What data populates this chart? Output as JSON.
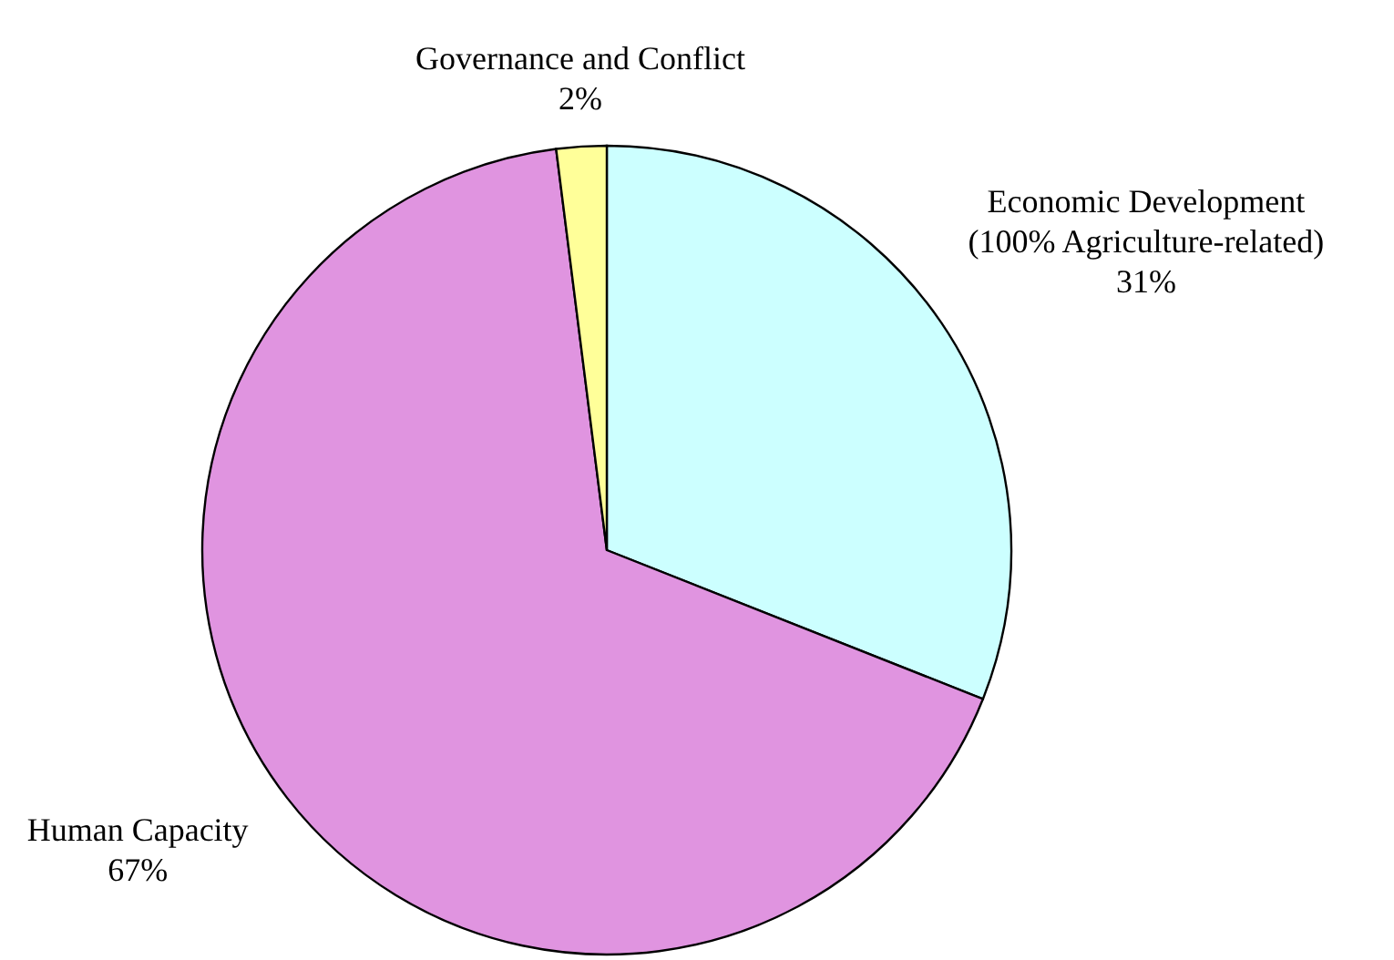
{
  "chart_data": {
    "type": "pie",
    "categories": [
      "Economic Development\n(100% Agriculture-related)",
      "Human Capacity",
      "Governance and Conflict"
    ],
    "values": [
      31,
      67,
      2
    ],
    "colors": [
      "#ccffff",
      "#e094e0",
      "#ffff99"
    ],
    "value_labels": [
      "31%",
      "67%",
      "2%"
    ]
  }
}
